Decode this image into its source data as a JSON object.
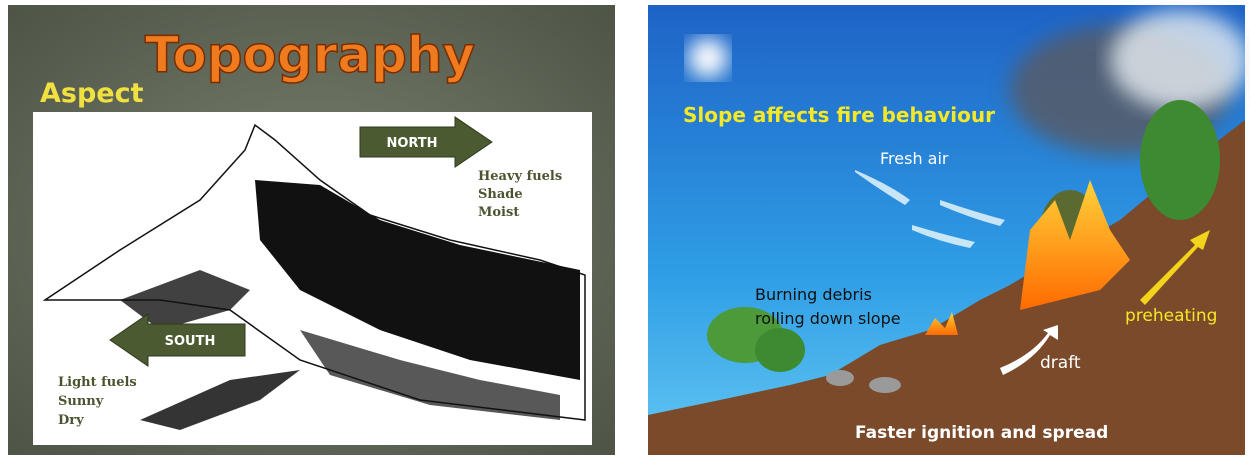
{
  "left": {
    "title": "Topography",
    "subtitle": "Aspect",
    "north": {
      "arrow": "NORTH",
      "notes": [
        "Heavy fuels",
        "Shade",
        "Moist"
      ]
    },
    "south": {
      "arrow": "SOUTH",
      "notes": [
        "Light fuels",
        "Sunny",
        "Dry"
      ]
    }
  },
  "right": {
    "title": "Slope affects fire behaviour",
    "labels": {
      "fresh_air": "Fresh air",
      "debris": [
        "Burning debris",
        "rolling down slope"
      ],
      "preheating": "preheating",
      "draft": "draft",
      "footer": "Faster ignition and spread"
    }
  }
}
